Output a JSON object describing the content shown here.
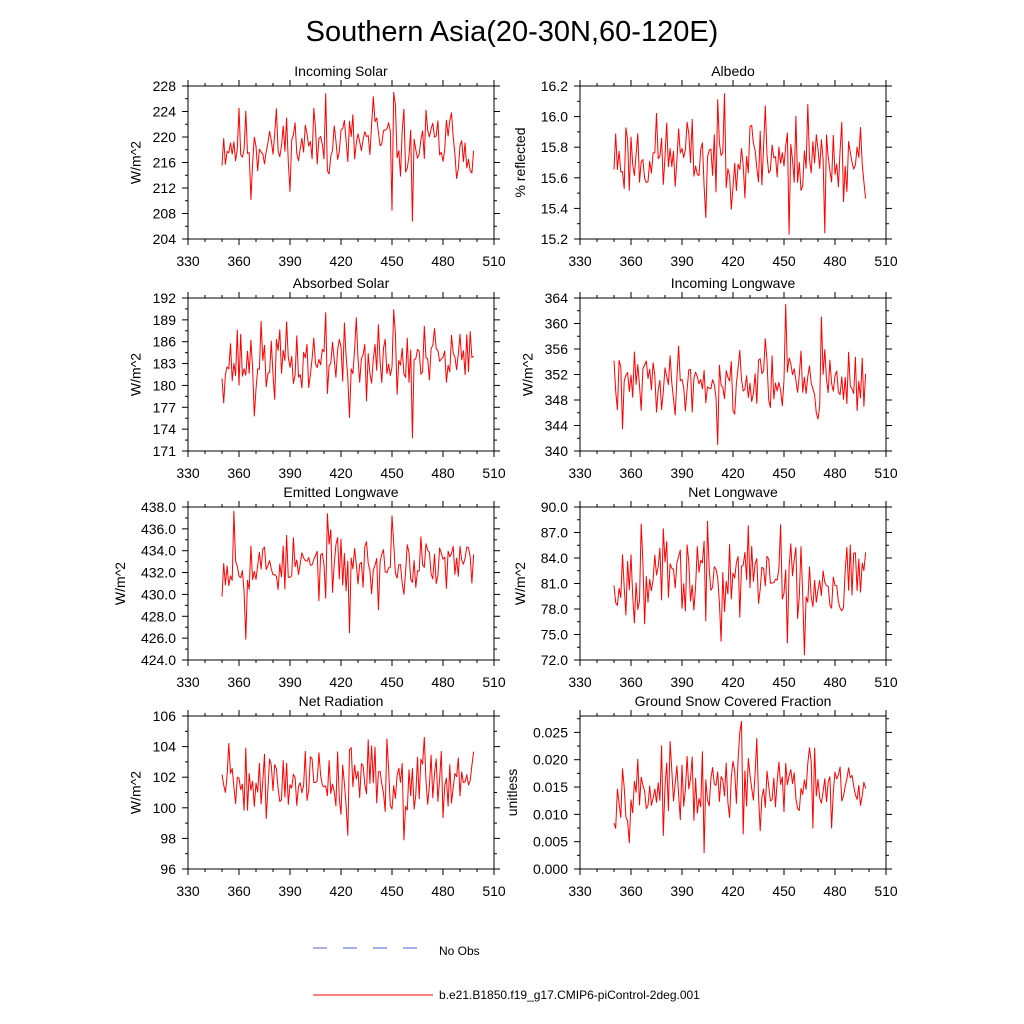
{
  "title": "Southern Asia(20-30N,60-120E)",
  "colors": {
    "model": "#ff0000",
    "obs": "#4a5fd0",
    "axis": "#000000"
  },
  "legend": {
    "obs_label": "No Obs",
    "model_label": "b.e21.B1850.f19_g17.CMIP6-piControl-2deg.001"
  },
  "chart_data": [
    {
      "type": "line",
      "title": "Incoming Solar",
      "ylabel": "W/m^2",
      "xlim": [
        330,
        510
      ],
      "xticks": [
        330,
        360,
        390,
        420,
        450,
        480,
        510
      ],
      "ylim": [
        204,
        228
      ],
      "yticks": [
        204,
        208,
        212,
        216,
        220,
        224,
        228
      ],
      "ydec": 0,
      "x_start": 350,
      "x_end": 498,
      "seed": 11,
      "summary": {
        "mean": 219.0,
        "spread": 2.9,
        "peaks": [
          [
            411,
            226.8
          ],
          [
            451,
            227.0
          ],
          [
            439,
            226.3
          ]
        ],
        "troughs": [
          [
            462,
            206.8
          ],
          [
            367,
            210.2
          ],
          [
            450,
            208.5
          ]
        ]
      }
    },
    {
      "type": "line",
      "title": "Albedo",
      "ylabel": "% reflected",
      "xlim": [
        330,
        510
      ],
      "xticks": [
        330,
        360,
        390,
        420,
        450,
        480,
        510
      ],
      "ylim": [
        15.2,
        16.2
      ],
      "yticks": [
        15.2,
        15.4,
        15.6,
        15.8,
        16.0,
        16.2
      ],
      "ydec": 1,
      "x_start": 350,
      "x_end": 498,
      "seed": 23,
      "summary": {
        "mean": 15.74,
        "spread": 0.14,
        "peaks": [
          [
            415,
            16.15
          ],
          [
            439,
            16.07
          ],
          [
            464,
            16.08
          ]
        ],
        "troughs": [
          [
            453,
            15.23
          ],
          [
            474,
            15.24
          ],
          [
            404,
            15.34
          ]
        ]
      }
    },
    {
      "type": "line",
      "title": "Absorbed Solar",
      "ylabel": "W/m^2",
      "xlim": [
        330,
        510
      ],
      "xticks": [
        330,
        360,
        390,
        420,
        450,
        480,
        510
      ],
      "ylim": [
        171,
        192
      ],
      "yticks": [
        171,
        174,
        177,
        180,
        183,
        186,
        189,
        192
      ],
      "ydec": 0,
      "x_start": 350,
      "x_end": 498,
      "seed": 37,
      "summary": {
        "mean": 183.2,
        "spread": 2.6,
        "peaks": [
          [
            411,
            190.0
          ],
          [
            451,
            190.4
          ],
          [
            429,
            189.3
          ]
        ],
        "troughs": [
          [
            462,
            172.8
          ],
          [
            369,
            175.8
          ],
          [
            425,
            175.6
          ]
        ]
      }
    },
    {
      "type": "line",
      "title": "Incoming Longwave",
      "ylabel": "W/m^2",
      "xlim": [
        330,
        510
      ],
      "xticks": [
        330,
        360,
        390,
        420,
        450,
        480,
        510
      ],
      "ylim": [
        340,
        364
      ],
      "yticks": [
        340,
        344,
        348,
        352,
        356,
        360,
        364
      ],
      "ydec": 0,
      "x_start": 350,
      "x_end": 498,
      "seed": 41,
      "summary": {
        "mean": 351.0,
        "spread": 2.6,
        "peaks": [
          [
            451,
            363.0
          ],
          [
            472,
            361.0
          ],
          [
            439,
            357.6
          ]
        ],
        "troughs": [
          [
            411,
            341.0
          ],
          [
            355,
            343.5
          ],
          [
            470,
            345.0
          ]
        ]
      }
    },
    {
      "type": "line",
      "title": "Emitted Longwave",
      "ylabel": "W/m^2",
      "xlim": [
        330,
        510
      ],
      "xticks": [
        330,
        360,
        390,
        420,
        450,
        480,
        510
      ],
      "ylim": [
        424.0,
        438.0
      ],
      "yticks": [
        424.0,
        426.0,
        428.0,
        430.0,
        432.0,
        434.0,
        436.0,
        438.0
      ],
      "ydec": 1,
      "x_start": 350,
      "x_end": 498,
      "seed": 53,
      "summary": {
        "mean": 432.6,
        "spread": 1.4,
        "peaks": [
          [
            357,
            437.6
          ],
          [
            412,
            437.4
          ],
          [
            450,
            437.2
          ]
        ],
        "troughs": [
          [
            364,
            425.9
          ],
          [
            425,
            426.5
          ],
          [
            442,
            428.6
          ]
        ]
      }
    },
    {
      "type": "line",
      "title": "Net Longwave",
      "ylabel": "W/m^2",
      "xlim": [
        330,
        510
      ],
      "xticks": [
        330,
        360,
        390,
        420,
        450,
        480,
        510
      ],
      "ylim": [
        72.0,
        90.0
      ],
      "yticks": [
        72.0,
        75.0,
        78.0,
        81.0,
        84.0,
        87.0,
        90.0
      ],
      "ydec": 1,
      "x_start": 350,
      "x_end": 498,
      "seed": 67,
      "summary": {
        "mean": 81.7,
        "spread": 2.6,
        "peaks": [
          [
            366,
            88.0
          ],
          [
            429,
            87.8
          ],
          [
            448,
            87.9
          ]
        ],
        "troughs": [
          [
            462,
            72.6
          ],
          [
            452,
            74.0
          ],
          [
            413,
            74.2
          ]
        ]
      }
    },
    {
      "type": "line",
      "title": "Net Radiation",
      "ylabel": "W/m^2",
      "xlim": [
        330,
        510
      ],
      "xticks": [
        330,
        360,
        390,
        420,
        450,
        480,
        510
      ],
      "ylim": [
        96,
        106
      ],
      "yticks": [
        96,
        98,
        100,
        102,
        104,
        106
      ],
      "ydec": 0,
      "x_start": 350,
      "x_end": 498,
      "seed": 79,
      "summary": {
        "mean": 101.9,
        "spread": 1.2,
        "peaks": [
          [
            354,
            104.2
          ],
          [
            469,
            104.6
          ],
          [
            447,
            104.5
          ]
        ],
        "troughs": [
          [
            457,
            97.9
          ],
          [
            424,
            98.2
          ],
          [
            376,
            99.3
          ]
        ]
      }
    },
    {
      "type": "line",
      "title": "Ground Snow Covered Fraction",
      "ylabel": "unitless",
      "xlim": [
        330,
        510
      ],
      "xticks": [
        330,
        360,
        390,
        420,
        450,
        480,
        510
      ],
      "ylim": [
        0.0,
        0.028
      ],
      "yticks": [
        0.0,
        0.005,
        0.01,
        0.015,
        0.02,
        0.025
      ],
      "ydec": 3,
      "x_start": 350,
      "x_end": 498,
      "seed": 97,
      "summary": {
        "mean": 0.0145,
        "spread": 0.0035,
        "peaks": [
          [
            425,
            0.027
          ],
          [
            424,
            0.025
          ],
          [
            396,
            0.0205
          ]
        ],
        "troughs": [
          [
            403,
            0.003
          ],
          [
            436,
            0.007
          ],
          [
            478,
            0.0075
          ]
        ]
      }
    }
  ]
}
